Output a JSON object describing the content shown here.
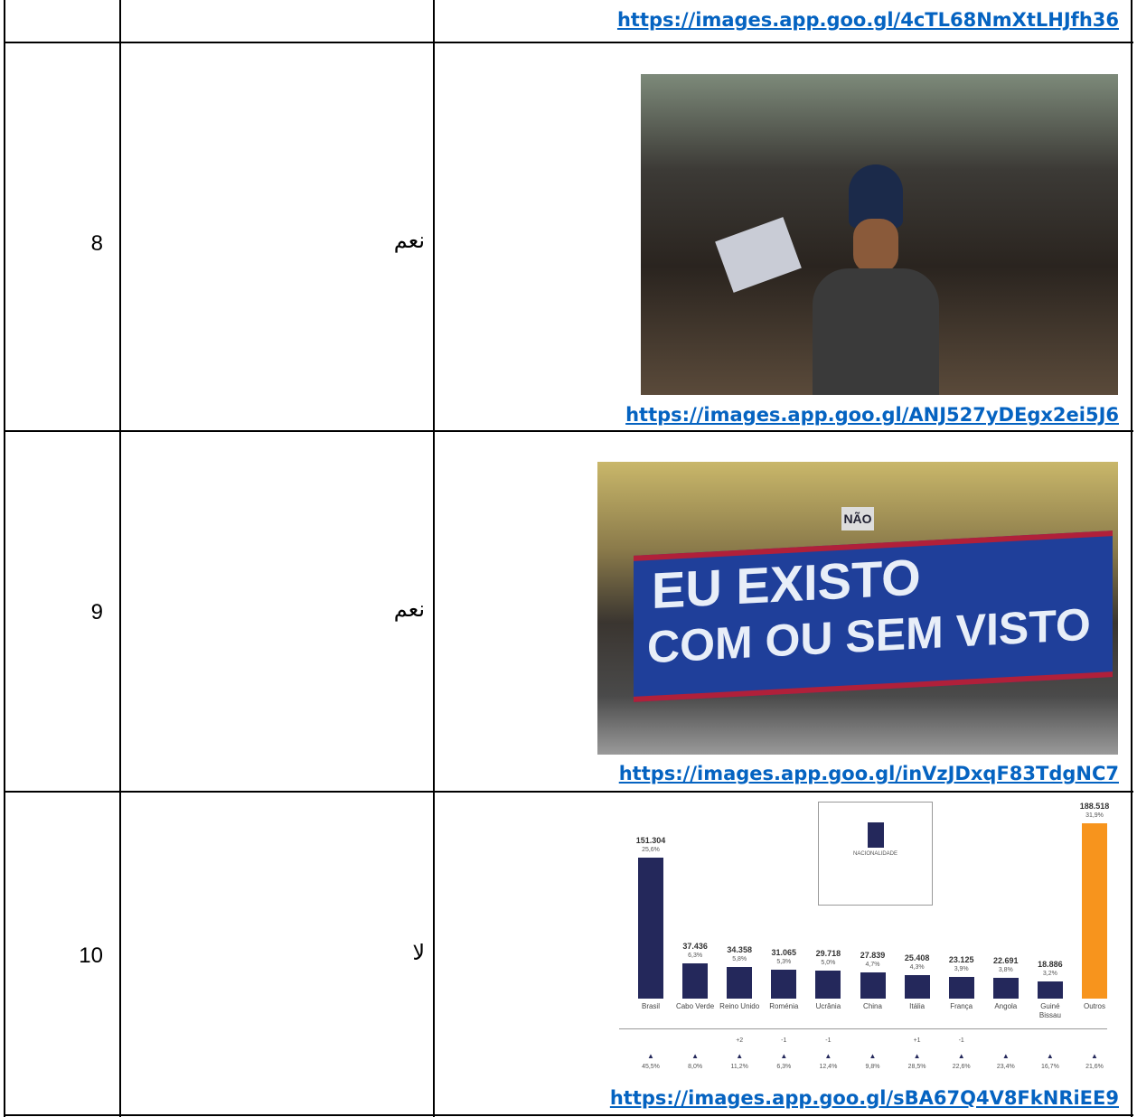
{
  "table": {
    "rows": [
      {
        "link": "https://images.app.goo.gl/4cTL68NmXtLHJfh36"
      },
      {
        "number": 8,
        "answer": "نعم",
        "link": "https://images.app.goo.gl/ANJ527yDEgx2ei5J6"
      },
      {
        "number": 9,
        "answer": "نعم",
        "photo_banner": [
          "EU EXISTO",
          "COM OU SEM VISTO"
        ],
        "photo_sign": "NÃO",
        "link": "https://images.app.goo.gl/inVzJDxqF83TdgNC7"
      },
      {
        "number": 10,
        "answer": "لا",
        "chart": {
          "legend_label": "NACIONALIDADE",
          "bars": [
            {
              "category": "Brasil",
              "value": 151304,
              "value_label": "151.304",
              "share": "25,6%",
              "growth": "45,5%"
            },
            {
              "category": "Cabo Verde",
              "value": 37436,
              "value_label": "37.436",
              "share": "6,3%",
              "growth": "8,0%"
            },
            {
              "category": "Reino Unido",
              "value": 34358,
              "value_label": "34.358",
              "share": "5,8%",
              "rank_change": "+2",
              "growth": "11,2%"
            },
            {
              "category": "Roménia",
              "value": 31065,
              "value_label": "31.065",
              "share": "5,3%",
              "rank_change": "-1",
              "growth": "6,3%"
            },
            {
              "category": "Ucrânia",
              "value": 29718,
              "value_label": "29.718",
              "share": "5,0%",
              "rank_change": "-1",
              "growth": "12,4%"
            },
            {
              "category": "China",
              "value": 27839,
              "value_label": "27.839",
              "share": "4,7%",
              "growth": "9,8%"
            },
            {
              "category": "Itália",
              "value": 25408,
              "value_label": "25.408",
              "share": "4,3%",
              "rank_change": "+1",
              "growth": "28,5%"
            },
            {
              "category": "França",
              "value": 23125,
              "value_label": "23.125",
              "share": "3,9%",
              "rank_change": "-1",
              "growth": "22,6%"
            },
            {
              "category": "Angola",
              "value": 22691,
              "value_label": "22.691",
              "share": "3,8%",
              "growth": "23,4%"
            },
            {
              "category": "Guiné Bissau",
              "value": 18886,
              "value_label": "18.886",
              "share": "3,2%",
              "growth": "16,7%"
            },
            {
              "category": "Outros",
              "value": 188518,
              "value_label": "188.518",
              "share": "31,9%",
              "growth": "21,6%",
              "highlight": true
            }
          ]
        },
        "link": "https://images.app.goo.gl/sBA67Q4V8FkNRiEE9"
      }
    ]
  }
}
